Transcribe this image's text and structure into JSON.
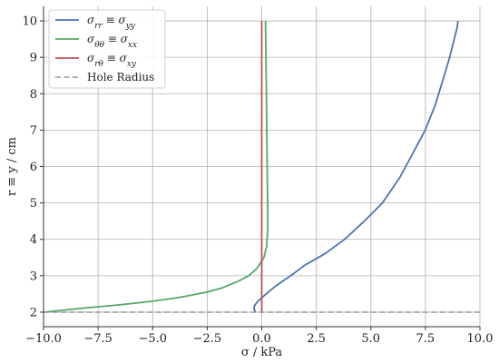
{
  "chart_data": {
    "type": "line",
    "xlabel": "σ / kPa",
    "ylabel": "r ≡ y / cm",
    "xlim": [
      -10,
      10
    ],
    "ylim": [
      1.6,
      10.4
    ],
    "xticks": [
      -10,
      -7.5,
      -5,
      -2.5,
      0,
      2.5,
      5,
      7.5,
      10
    ],
    "xtick_labels": [
      "−10.0",
      "−7.5",
      "−5.0",
      "−2.5",
      "0.0",
      "2.5",
      "5.0",
      "7.5",
      "10.0"
    ],
    "yticks": [
      2,
      3,
      4,
      5,
      6,
      7,
      8,
      9,
      10
    ],
    "ytick_labels": [
      "2",
      "3",
      "4",
      "5",
      "6",
      "7",
      "8",
      "9",
      "10"
    ],
    "grid": true,
    "legend_position": "top-left",
    "series": [
      {
        "name": "σrr ≡ σyy",
        "name_parts": [
          [
            "σ",
            ""
          ],
          [
            "rr",
            "sub"
          ],
          [
            " ≡ σ",
            ""
          ],
          [
            "yy",
            "sub"
          ]
        ],
        "color": "#4C72B0",
        "style": "solid",
        "x": [
          -0.29,
          -0.36,
          -0.31,
          -0.17,
          0.01,
          0.2,
          0.6,
          1.33,
          2.0,
          2.88,
          3.8,
          4.7,
          5.53,
          6.33,
          6.87,
          7.49,
          7.96,
          8.36,
          8.61,
          8.95,
          9.0
        ],
        "y": [
          2.0,
          2.1,
          2.2,
          2.3,
          2.4,
          2.5,
          2.7,
          3.0,
          3.3,
          3.6,
          4.0,
          4.5,
          5.0,
          5.7,
          6.3,
          7.0,
          7.7,
          8.5,
          9.0,
          9.8,
          10.0
        ]
      },
      {
        "name": "σθθ ≡ σxx",
        "name_parts": [
          [
            "σ",
            ""
          ],
          [
            "θθ",
            "sub"
          ],
          [
            " ≡ σ",
            ""
          ],
          [
            "xx",
            "sub"
          ]
        ],
        "color": "#55A868",
        "style": "solid",
        "x": [
          -10.0,
          -8.0,
          -6.5,
          -5.0,
          -3.8,
          -2.5,
          -1.8,
          -1.08,
          -0.6,
          -0.22,
          0.1,
          0.22,
          0.28,
          0.27,
          0.25,
          0.23,
          0.21,
          0.19,
          0.17
        ],
        "y": [
          2.0,
          2.12,
          2.2,
          2.3,
          2.4,
          2.55,
          2.67,
          2.85,
          3.0,
          3.2,
          3.5,
          3.8,
          4.3,
          5.0,
          6.0,
          7.0,
          8.0,
          9.0,
          10.0
        ]
      },
      {
        "name": "σrθ ≡ σxy",
        "name_parts": [
          [
            "σ",
            ""
          ],
          [
            "rθ",
            "sub"
          ],
          [
            " ≡ σ",
            ""
          ],
          [
            "xy",
            "sub"
          ]
        ],
        "color": "#C44E52",
        "style": "solid",
        "x": [
          0.0,
          0.0
        ],
        "y": [
          2.0,
          10.0
        ]
      },
      {
        "name": "Hole Radius",
        "name_parts": [
          [
            "Hole Radius",
            ""
          ]
        ],
        "color": "#999999",
        "style": "dashed",
        "x": [
          -10,
          10
        ],
        "y": [
          2.0,
          2.0
        ]
      }
    ]
  }
}
